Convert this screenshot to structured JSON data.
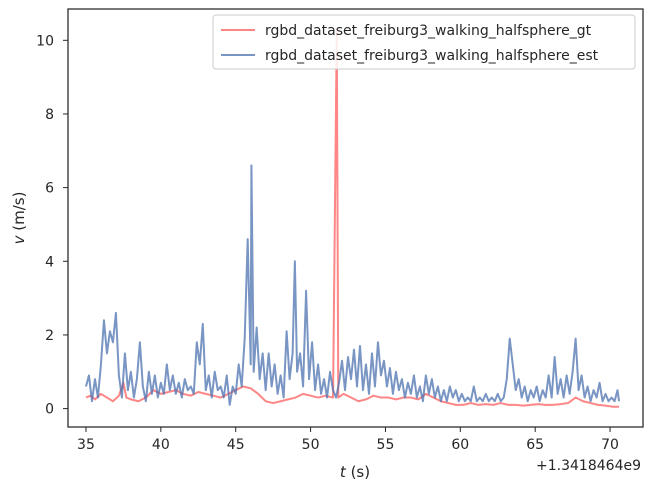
{
  "chart_data": {
    "type": "line",
    "xlabel_var": "t",
    "xlabel_unit": " (s)",
    "ylabel_var": "v",
    "ylabel_unit": " (m/s)",
    "offset_text": "+1.3418464e9",
    "xlim": [
      33.8,
      72.2
    ],
    "ylim": [
      -0.5,
      10.85
    ],
    "xticks": [
      35,
      40,
      45,
      50,
      55,
      60,
      65,
      70
    ],
    "yticks": [
      0,
      2,
      4,
      6,
      8,
      10
    ],
    "grid": false,
    "legend_position": "top-right",
    "series": [
      {
        "name": "rgbd_dataset_freiburg3_walking_halfsphere_gt",
        "color": "#ff7f7f",
        "points": [
          [
            35.0,
            0.3
          ],
          [
            35.3,
            0.35
          ],
          [
            35.6,
            0.25
          ],
          [
            36.0,
            0.4
          ],
          [
            36.4,
            0.3
          ],
          [
            36.8,
            0.2
          ],
          [
            37.2,
            0.35
          ],
          [
            37.5,
            0.7
          ],
          [
            37.7,
            0.3
          ],
          [
            38.0,
            0.25
          ],
          [
            38.5,
            0.2
          ],
          [
            39.0,
            0.3
          ],
          [
            39.5,
            0.5
          ],
          [
            40.0,
            0.4
          ],
          [
            40.5,
            0.45
          ],
          [
            41.0,
            0.5
          ],
          [
            41.5,
            0.4
          ],
          [
            42.0,
            0.35
          ],
          [
            42.5,
            0.45
          ],
          [
            43.0,
            0.4
          ],
          [
            43.5,
            0.35
          ],
          [
            44.0,
            0.3
          ],
          [
            44.5,
            0.4
          ],
          [
            45.0,
            0.5
          ],
          [
            45.5,
            0.6
          ],
          [
            46.0,
            0.55
          ],
          [
            46.5,
            0.4
          ],
          [
            47.0,
            0.2
          ],
          [
            47.5,
            0.15
          ],
          [
            48.0,
            0.2
          ],
          [
            48.5,
            0.25
          ],
          [
            49.0,
            0.3
          ],
          [
            49.5,
            0.4
          ],
          [
            50.0,
            0.35
          ],
          [
            50.5,
            0.3
          ],
          [
            51.0,
            0.35
          ],
          [
            51.5,
            0.3
          ],
          [
            51.75,
            10.3
          ],
          [
            51.85,
            0.3
          ],
          [
            52.2,
            0.4
          ],
          [
            52.7,
            0.3
          ],
          [
            53.2,
            0.2
          ],
          [
            53.7,
            0.25
          ],
          [
            54.2,
            0.35
          ],
          [
            54.7,
            0.3
          ],
          [
            55.2,
            0.3
          ],
          [
            55.7,
            0.25
          ],
          [
            56.2,
            0.3
          ],
          [
            56.7,
            0.3
          ],
          [
            57.2,
            0.25
          ],
          [
            57.7,
            0.4
          ],
          [
            58.2,
            0.3
          ],
          [
            58.7,
            0.2
          ],
          [
            59.2,
            0.15
          ],
          [
            59.7,
            0.1
          ],
          [
            60.2,
            0.1
          ],
          [
            60.7,
            0.15
          ],
          [
            61.2,
            0.1
          ],
          [
            61.7,
            0.12
          ],
          [
            62.2,
            0.1
          ],
          [
            62.7,
            0.15
          ],
          [
            63.2,
            0.1
          ],
          [
            63.7,
            0.1
          ],
          [
            64.2,
            0.08
          ],
          [
            64.7,
            0.1
          ],
          [
            65.2,
            0.12
          ],
          [
            65.7,
            0.1
          ],
          [
            66.2,
            0.1
          ],
          [
            66.7,
            0.12
          ],
          [
            67.2,
            0.15
          ],
          [
            67.7,
            0.3
          ],
          [
            68.2,
            0.2
          ],
          [
            68.7,
            0.15
          ],
          [
            69.2,
            0.1
          ],
          [
            69.7,
            0.08
          ],
          [
            70.2,
            0.05
          ],
          [
            70.6,
            0.05
          ]
        ]
      },
      {
        "name": "rgbd_dataset_freiburg3_walking_halfsphere_est",
        "color": "#4c72b0",
        "points": [
          [
            35.0,
            0.6
          ],
          [
            35.2,
            0.9
          ],
          [
            35.4,
            0.2
          ],
          [
            35.6,
            0.8
          ],
          [
            35.8,
            0.3
          ],
          [
            36.0,
            1.2
          ],
          [
            36.2,
            2.4
          ],
          [
            36.4,
            1.5
          ],
          [
            36.6,
            2.1
          ],
          [
            36.8,
            1.8
          ],
          [
            37.0,
            2.6
          ],
          [
            37.2,
            0.9
          ],
          [
            37.4,
            0.3
          ],
          [
            37.6,
            1.5
          ],
          [
            37.8,
            0.5
          ],
          [
            38.0,
            1.0
          ],
          [
            38.2,
            0.3
          ],
          [
            38.4,
            0.8
          ],
          [
            38.6,
            1.8
          ],
          [
            38.8,
            0.6
          ],
          [
            39.0,
            0.2
          ],
          [
            39.2,
            1.0
          ],
          [
            39.4,
            0.4
          ],
          [
            39.6,
            0.9
          ],
          [
            39.8,
            0.3
          ],
          [
            40.0,
            0.7
          ],
          [
            40.2,
            0.4
          ],
          [
            40.4,
            1.2
          ],
          [
            40.6,
            0.5
          ],
          [
            40.8,
            0.9
          ],
          [
            41.0,
            0.4
          ],
          [
            41.2,
            0.7
          ],
          [
            41.4,
            0.3
          ],
          [
            41.6,
            0.8
          ],
          [
            41.8,
            0.5
          ],
          [
            42.0,
            0.6
          ],
          [
            42.2,
            0.4
          ],
          [
            42.4,
            1.8
          ],
          [
            42.6,
            1.2
          ],
          [
            42.8,
            2.3
          ],
          [
            43.0,
            0.5
          ],
          [
            43.2,
            0.9
          ],
          [
            43.4,
            0.3
          ],
          [
            43.6,
            1.0
          ],
          [
            43.8,
            0.5
          ],
          [
            44.0,
            0.6
          ],
          [
            44.2,
            0.3
          ],
          [
            44.4,
            0.9
          ],
          [
            44.6,
            0.1
          ],
          [
            44.8,
            0.6
          ],
          [
            45.0,
            0.4
          ],
          [
            45.2,
            1.2
          ],
          [
            45.4,
            0.6
          ],
          [
            45.6,
            1.9
          ],
          [
            45.8,
            4.6
          ],
          [
            46.0,
            1.2
          ],
          [
            46.05,
            6.6
          ],
          [
            46.2,
            1.0
          ],
          [
            46.4,
            2.2
          ],
          [
            46.6,
            0.8
          ],
          [
            46.8,
            1.5
          ],
          [
            47.0,
            0.5
          ],
          [
            47.2,
            1.5
          ],
          [
            47.4,
            0.6
          ],
          [
            47.6,
            1.2
          ],
          [
            47.8,
            0.4
          ],
          [
            48.0,
            0.9
          ],
          [
            48.2,
            0.3
          ],
          [
            48.4,
            2.1
          ],
          [
            48.6,
            0.8
          ],
          [
            48.8,
            1.5
          ],
          [
            48.95,
            4.0
          ],
          [
            49.1,
            1.0
          ],
          [
            49.3,
            1.5
          ],
          [
            49.5,
            0.6
          ],
          [
            49.7,
            3.2
          ],
          [
            49.9,
            0.8
          ],
          [
            50.1,
            1.8
          ],
          [
            50.3,
            0.5
          ],
          [
            50.5,
            1.2
          ],
          [
            50.7,
            0.4
          ],
          [
            50.9,
            0.8
          ],
          [
            51.1,
            0.3
          ],
          [
            51.3,
            1.0
          ],
          [
            51.5,
            0.5
          ],
          [
            51.7,
            0.3
          ],
          [
            51.9,
            0.7
          ],
          [
            52.1,
            1.3
          ],
          [
            52.3,
            0.5
          ],
          [
            52.5,
            1.4
          ],
          [
            52.7,
            0.8
          ],
          [
            52.9,
            1.6
          ],
          [
            53.1,
            0.6
          ],
          [
            53.3,
            1.7
          ],
          [
            53.5,
            0.5
          ],
          [
            53.7,
            1.2
          ],
          [
            53.9,
            0.4
          ],
          [
            54.1,
            1.5
          ],
          [
            54.3,
            0.6
          ],
          [
            54.5,
            1.8
          ],
          [
            54.7,
            0.9
          ],
          [
            54.9,
            1.3
          ],
          [
            55.1,
            0.6
          ],
          [
            55.3,
            1.1
          ],
          [
            55.5,
            0.4
          ],
          [
            55.7,
            1.0
          ],
          [
            55.9,
            0.5
          ],
          [
            56.1,
            0.8
          ],
          [
            56.3,
            0.3
          ],
          [
            56.5,
            0.7
          ],
          [
            56.7,
            0.4
          ],
          [
            56.9,
            0.9
          ],
          [
            57.1,
            0.3
          ],
          [
            57.3,
            0.6
          ],
          [
            57.5,
            0.2
          ],
          [
            57.7,
            0.9
          ],
          [
            57.9,
            0.4
          ],
          [
            58.1,
            0.8
          ],
          [
            58.3,
            0.3
          ],
          [
            58.5,
            0.6
          ],
          [
            58.7,
            0.2
          ],
          [
            58.9,
            0.5
          ],
          [
            59.1,
            0.2
          ],
          [
            59.3,
            0.6
          ],
          [
            59.5,
            0.3
          ],
          [
            59.7,
            0.5
          ],
          [
            59.9,
            0.2
          ],
          [
            60.1,
            0.4
          ],
          [
            60.3,
            0.2
          ],
          [
            60.5,
            0.3
          ],
          [
            60.7,
            0.2
          ],
          [
            60.9,
            0.6
          ],
          [
            61.1,
            0.2
          ],
          [
            61.3,
            0.3
          ],
          [
            61.5,
            0.2
          ],
          [
            61.7,
            0.4
          ],
          [
            61.9,
            0.2
          ],
          [
            62.1,
            0.3
          ],
          [
            62.3,
            0.2
          ],
          [
            62.5,
            0.4
          ],
          [
            62.7,
            0.2
          ],
          [
            62.9,
            0.3
          ],
          [
            63.1,
            0.8
          ],
          [
            63.3,
            1.9
          ],
          [
            63.5,
            1.2
          ],
          [
            63.7,
            0.5
          ],
          [
            63.9,
            0.8
          ],
          [
            64.1,
            0.3
          ],
          [
            64.3,
            0.6
          ],
          [
            64.5,
            0.2
          ],
          [
            64.7,
            0.5
          ],
          [
            64.9,
            0.3
          ],
          [
            65.1,
            0.6
          ],
          [
            65.3,
            0.2
          ],
          [
            65.5,
            0.5
          ],
          [
            65.7,
            0.3
          ],
          [
            65.9,
            0.9
          ],
          [
            66.1,
            0.3
          ],
          [
            66.3,
            1.4
          ],
          [
            66.5,
            0.4
          ],
          [
            66.7,
            0.8
          ],
          [
            66.9,
            0.3
          ],
          [
            67.1,
            0.9
          ],
          [
            67.3,
            0.4
          ],
          [
            67.5,
            1.0
          ],
          [
            67.7,
            1.9
          ],
          [
            67.9,
            0.5
          ],
          [
            68.1,
            0.9
          ],
          [
            68.3,
            0.3
          ],
          [
            68.5,
            0.6
          ],
          [
            68.7,
            0.2
          ],
          [
            68.9,
            0.5
          ],
          [
            69.1,
            0.3
          ],
          [
            69.3,
            0.7
          ],
          [
            69.5,
            0.2
          ],
          [
            69.7,
            0.4
          ],
          [
            69.9,
            0.2
          ],
          [
            70.1,
            0.3
          ],
          [
            70.3,
            0.2
          ],
          [
            70.5,
            0.5
          ],
          [
            70.6,
            0.2
          ]
        ]
      }
    ]
  }
}
